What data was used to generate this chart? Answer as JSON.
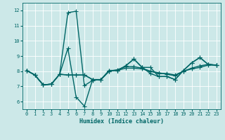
{
  "background_color": "#cce8e8",
  "grid_color": "#ffffff",
  "line_color": "#006666",
  "line_width": 1.0,
  "marker": "+",
  "marker_size": 4,
  "marker_edge_width": 0.8,
  "xlabel": "Humidex (Indice chaleur)",
  "xlabel_fontsize": 6.0,
  "xlabel_weight": "bold",
  "xlim": [
    -0.5,
    23.5
  ],
  "ylim": [
    5.5,
    12.5
  ],
  "xticks": [
    0,
    1,
    2,
    3,
    4,
    5,
    6,
    7,
    8,
    9,
    10,
    11,
    12,
    13,
    14,
    15,
    16,
    17,
    18,
    19,
    20,
    21,
    22,
    23
  ],
  "yticks": [
    6,
    7,
    8,
    9,
    10,
    11,
    12
  ],
  "tick_labelsize": 5.0,
  "series": [
    [
      8.05,
      7.75,
      7.1,
      7.15,
      7.8,
      11.85,
      11.95,
      7.05,
      7.4,
      7.45,
      8.05,
      8.05,
      8.35,
      8.8,
      8.25,
      8.25,
      7.65,
      7.65,
      7.45,
      8.05,
      8.55,
      8.9,
      8.45,
      8.4
    ],
    [
      8.05,
      7.75,
      7.1,
      7.15,
      7.8,
      9.5,
      6.3,
      5.7,
      7.45,
      7.45,
      8.05,
      8.05,
      8.35,
      8.8,
      8.25,
      7.85,
      7.65,
      7.65,
      7.45,
      8.05,
      8.55,
      8.9,
      8.45,
      8.4
    ],
    [
      8.05,
      7.75,
      7.1,
      7.15,
      7.8,
      7.75,
      7.75,
      7.75,
      7.45,
      7.45,
      8.0,
      8.1,
      8.3,
      8.3,
      8.2,
      8.0,
      7.9,
      7.8,
      7.7,
      8.0,
      8.2,
      8.35,
      8.45,
      8.4
    ],
    [
      8.05,
      7.75,
      7.1,
      7.15,
      7.8,
      7.75,
      7.75,
      7.75,
      7.45,
      7.45,
      8.0,
      8.05,
      8.2,
      8.2,
      8.15,
      8.0,
      7.85,
      7.85,
      7.75,
      8.0,
      8.15,
      8.25,
      8.4,
      8.4
    ]
  ]
}
